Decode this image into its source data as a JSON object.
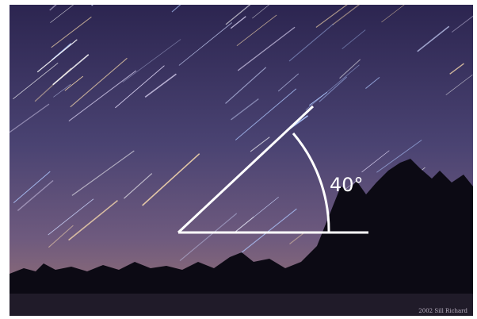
{
  "image": {
    "annotation": "40°",
    "credit": "2002 Sill Richard"
  }
}
